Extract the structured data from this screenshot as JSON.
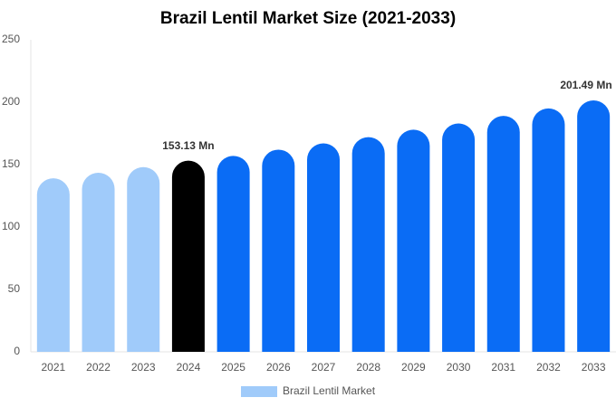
{
  "chart_data": {
    "type": "bar",
    "title": "Brazil Lentil Market Size (2021-2033)",
    "categories": [
      "2021",
      "2022",
      "2023",
      "2024",
      "2025",
      "2026",
      "2027",
      "2028",
      "2029",
      "2030",
      "2031",
      "2032",
      "2033"
    ],
    "series": [
      {
        "name": "Brazil Lentil Market",
        "color": "#a0cbfa",
        "colors": [
          "#a0cbfa",
          "#a0cbfa",
          "#a0cbfa",
          "#000000",
          "#0a6cf5",
          "#0a6cf5",
          "#0a6cf5",
          "#0a6cf5",
          "#0a6cf5",
          "#0a6cf5",
          "#0a6cf5",
          "#0a6cf5",
          "#0a6cf5"
        ],
        "values": [
          139,
          143.5,
          148,
          153.13,
          157,
          162,
          167,
          172,
          178,
          183,
          189,
          195,
          201.49
        ],
        "value_labels": [
          null,
          null,
          null,
          "153.13 Mn",
          null,
          null,
          null,
          null,
          null,
          null,
          null,
          null,
          "201.49 Mn"
        ]
      }
    ],
    "ylim": [
      0,
      250
    ],
    "yticks": [
      0,
      50,
      100,
      150,
      200,
      250
    ],
    "grid": false
  }
}
